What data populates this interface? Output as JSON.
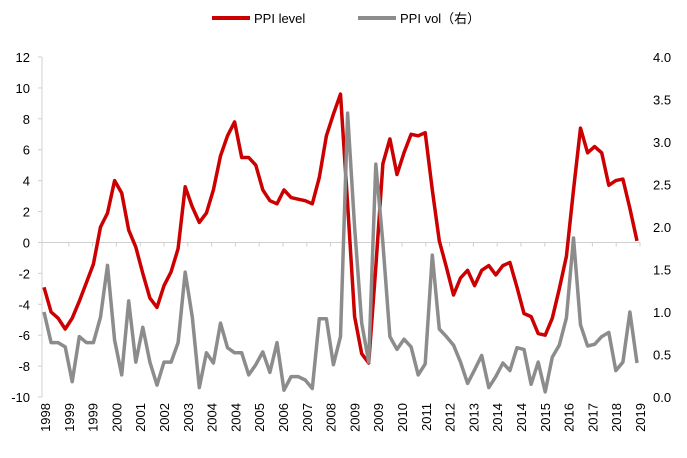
{
  "chart_data": {
    "type": "line",
    "title": "",
    "xlabel": "",
    "ylabel": "",
    "y2label": "",
    "ylim": [
      -10,
      12
    ],
    "y2lim": [
      0,
      4
    ],
    "yticks": [
      "-10",
      "-8",
      "-6",
      "-4",
      "-2",
      "0",
      "2",
      "4",
      "6",
      "8",
      "10",
      "12"
    ],
    "y2ticks": [
      "0.0",
      "0.5",
      "1.0",
      "1.5",
      "2.0",
      "2.5",
      "3.0",
      "3.5",
      "4.0"
    ],
    "xtick_labels": [
      "1998",
      "1999",
      "1999",
      "2000",
      "2001",
      "2002",
      "2003",
      "2004",
      "2004",
      "2005",
      "2006",
      "2007",
      "2008",
      "2009",
      "2009",
      "2010",
      "2011",
      "2012",
      "2013",
      "2014",
      "2014",
      "2015",
      "2016",
      "2017",
      "2018",
      "2019"
    ],
    "grid": false,
    "legend_position": "top-center",
    "series": [
      {
        "name": "PPI level",
        "axis": "left",
        "color": "#cc0000",
        "values": [
          -2.9,
          -4.5,
          -4.9,
          -5.6,
          -4.9,
          -3.8,
          -2.6,
          -1.4,
          1.0,
          1.9,
          4.0,
          3.2,
          0.8,
          -0.3,
          -2.0,
          -3.6,
          -4.2,
          -2.8,
          -1.9,
          -0.4,
          3.6,
          2.3,
          1.3,
          1.9,
          3.4,
          5.6,
          6.9,
          7.8,
          5.5,
          5.5,
          5.0,
          3.4,
          2.7,
          2.5,
          3.4,
          2.9,
          2.8,
          2.7,
          2.5,
          4.2,
          6.9,
          8.3,
          9.6,
          2.5,
          -4.8,
          -7.2,
          -7.8,
          -1.6,
          5.1,
          6.7,
          4.4,
          5.8,
          7.0,
          6.9,
          7.1,
          3.4,
          0.1,
          -1.6,
          -3.4,
          -2.3,
          -1.8,
          -2.8,
          -1.8,
          -1.5,
          -2.1,
          -1.5,
          -1.3,
          -2.9,
          -4.6,
          -4.8,
          -5.9,
          -6.0,
          -4.9,
          -3.0,
          -0.9,
          3.4,
          7.4,
          5.8,
          6.2,
          5.8,
          3.7,
          4.0,
          4.1,
          2.2,
          0.1
        ]
      },
      {
        "name": "PPI vol（右）",
        "axis": "right",
        "color": "#8c8c8c",
        "values": [
          1.0,
          0.64,
          0.64,
          0.59,
          0.18,
          0.71,
          0.64,
          0.64,
          0.94,
          1.55,
          0.67,
          0.26,
          1.13,
          0.41,
          0.82,
          0.41,
          0.14,
          0.41,
          0.41,
          0.64,
          1.47,
          0.94,
          0.11,
          0.52,
          0.4,
          0.87,
          0.58,
          0.52,
          0.52,
          0.26,
          0.38,
          0.53,
          0.29,
          0.64,
          0.08,
          0.24,
          0.24,
          0.2,
          0.1,
          0.92,
          0.92,
          0.38,
          0.71,
          3.34,
          2.0,
          0.87,
          0.41,
          2.74,
          1.81,
          0.71,
          0.56,
          0.68,
          0.59,
          0.26,
          0.39,
          1.67,
          0.8,
          0.71,
          0.61,
          0.41,
          0.16,
          0.32,
          0.49,
          0.11,
          0.24,
          0.4,
          0.31,
          0.58,
          0.56,
          0.15,
          0.41,
          0.06,
          0.47,
          0.61,
          0.93,
          1.87,
          0.85,
          0.6,
          0.62,
          0.71,
          0.76,
          0.31,
          0.41,
          1.0,
          0.4
        ]
      }
    ]
  }
}
